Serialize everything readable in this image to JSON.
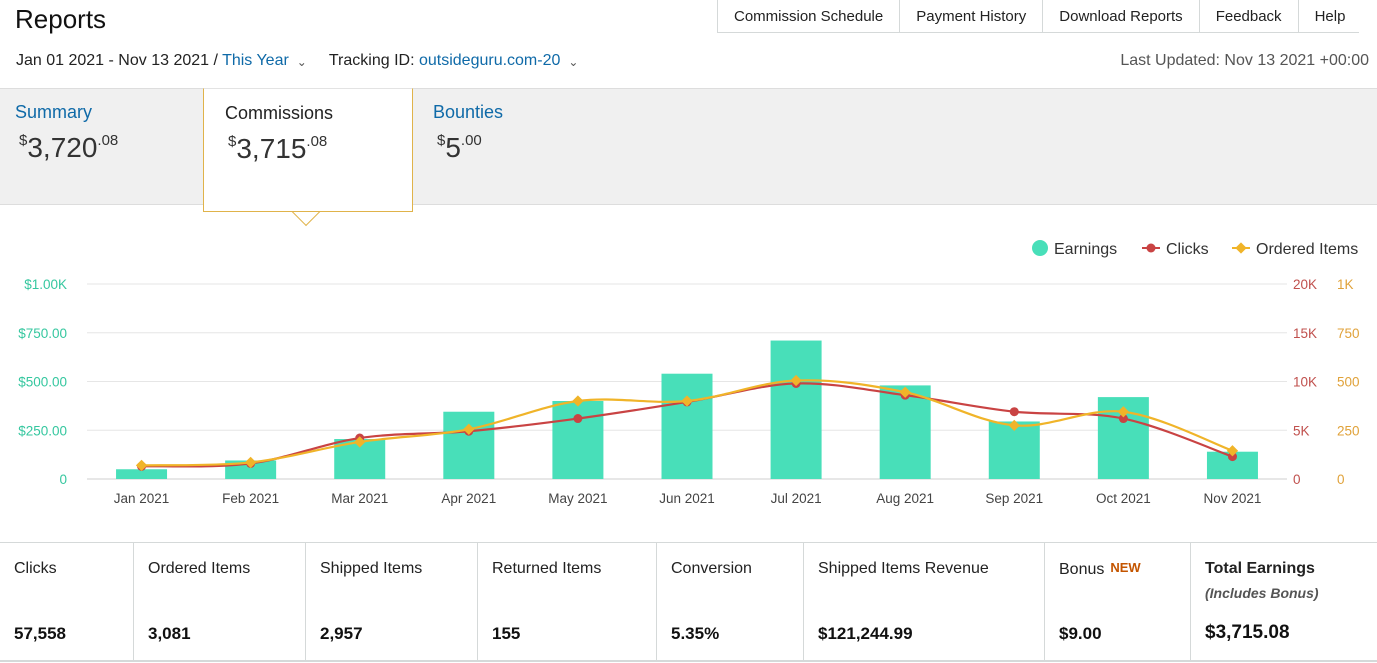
{
  "header": {
    "title": "Reports"
  },
  "topnav": [
    "Commission Schedule",
    "Payment History",
    "Download Reports",
    "Feedback",
    "Help"
  ],
  "filters": {
    "date_range": "Jan 01 2021 - Nov 13 2021",
    "separator": " / ",
    "period": "This Year",
    "tracking_label": "Tracking ID:",
    "tracking_value": "outsideguru.com-20",
    "last_updated": "Last Updated: Nov 13 2021 +00:00"
  },
  "tabs": {
    "summary": {
      "label": "Summary",
      "currency": "$",
      "whole": "3,720",
      "cents": ".08"
    },
    "commissions": {
      "label": "Commissions",
      "currency": "$",
      "whole": "3,715",
      "cents": ".08"
    },
    "bounties": {
      "label": "Bounties",
      "currency": "$",
      "whole": "5",
      "cents": ".00"
    }
  },
  "colors": {
    "earnings": "#48dfb9",
    "clicks": "#c94343",
    "ordered": "#f0b429",
    "link": "#0f6aa8"
  },
  "chart_data": {
    "type": "bar",
    "categories": [
      "Jan 2021",
      "Feb 2021",
      "Mar 2021",
      "Apr 2021",
      "May 2021",
      "Jun 2021",
      "Jul 2021",
      "Aug 2021",
      "Sep 2021",
      "Oct 2021",
      "Nov 2021"
    ],
    "legend": [
      "Earnings",
      "Clicks",
      "Ordered Items"
    ],
    "legend_position": "top-right",
    "grid": true,
    "y_left_ticks": [
      "0",
      "$250.00",
      "$500.00",
      "$750.00",
      "$1.00K"
    ],
    "y_clicks_ticks": [
      "0",
      "5K",
      "10K",
      "15K",
      "20K"
    ],
    "y_items_ticks": [
      "0",
      "250",
      "500",
      "750",
      "1K"
    ],
    "y_left_lim": [
      0,
      1000
    ],
    "y_clicks_lim": [
      0,
      20000
    ],
    "y_items_lim": [
      0,
      1000
    ],
    "series": [
      {
        "name": "Earnings",
        "axis": "left",
        "kind": "bar",
        "values": [
          50,
          95,
          205,
          345,
          400,
          540,
          710,
          480,
          295,
          420,
          140
        ]
      },
      {
        "name": "Clicks",
        "axis": "clicks",
        "kind": "line",
        "values": [
          1300,
          1600,
          4200,
          4900,
          6200,
          7900,
          9800,
          8600,
          6900,
          6200,
          2300
        ]
      },
      {
        "name": "Ordered Items",
        "axis": "items",
        "kind": "line",
        "values": [
          70,
          85,
          190,
          255,
          400,
          400,
          505,
          445,
          275,
          345,
          145
        ]
      }
    ]
  },
  "stats": [
    {
      "label": "Clicks",
      "value": "57,558"
    },
    {
      "label": "Ordered Items",
      "value": "3,081"
    },
    {
      "label": "Shipped Items",
      "value": "2,957"
    },
    {
      "label": "Returned Items",
      "value": "155"
    },
    {
      "label": "Conversion",
      "value": "5.35%"
    },
    {
      "label": "Shipped Items Revenue",
      "value": "$121,244.99"
    },
    {
      "label": "Bonus",
      "badge": "NEW",
      "value": "$9.00"
    },
    {
      "label": "Total Earnings",
      "sub": "(Includes Bonus)",
      "value": "$3,715.08"
    }
  ]
}
